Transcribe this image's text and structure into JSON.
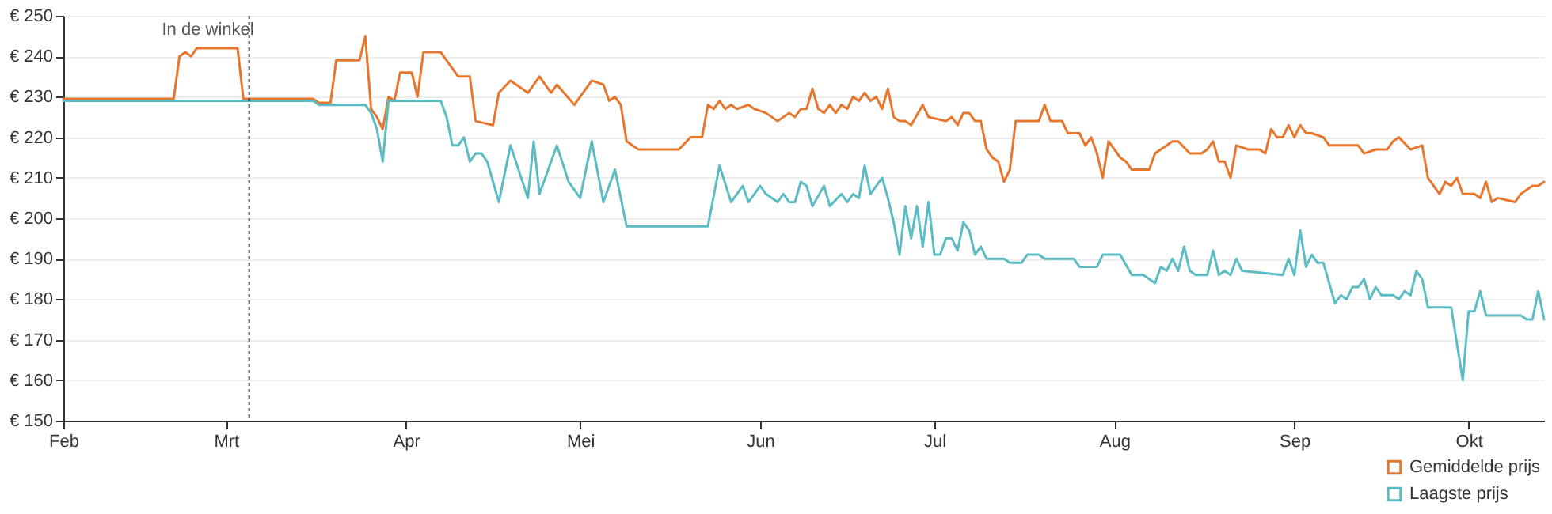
{
  "chart_data": {
    "type": "line",
    "xlim": [
      "--02-01",
      "--10-14"
    ],
    "xticks": [
      {
        "value": "--02-01",
        "label": "Feb"
      },
      {
        "value": "--03-01",
        "label": "Mrt"
      },
      {
        "value": "--04-01",
        "label": "Apr"
      },
      {
        "value": "--05-01",
        "label": "Mei"
      },
      {
        "value": "--06-01",
        "label": "Jun"
      },
      {
        "value": "--07-01",
        "label": "Jul"
      },
      {
        "value": "--08-01",
        "label": "Aug"
      },
      {
        "value": "--09-01",
        "label": "Sep"
      },
      {
        "value": "--10-01",
        "label": "Okt"
      }
    ],
    "ylim": [
      150,
      250
    ],
    "yticks": [
      {
        "value": 150,
        "label": "€ 150"
      },
      {
        "value": 160,
        "label": "€ 160"
      },
      {
        "value": 170,
        "label": "€ 170"
      },
      {
        "value": 180,
        "label": "€ 180"
      },
      {
        "value": 190,
        "label": "€ 190"
      },
      {
        "value": 200,
        "label": "€ 200"
      },
      {
        "value": 210,
        "label": "€ 210"
      },
      {
        "value": 220,
        "label": "€ 220"
      },
      {
        "value": 230,
        "label": "€ 230"
      },
      {
        "value": 240,
        "label": "€ 240"
      },
      {
        "value": 250,
        "label": "€ 250"
      }
    ],
    "grid": "y",
    "legend": "bottom right",
    "marker": "none",
    "line_style": "solid",
    "ref_lines": [
      {
        "axis": "x",
        "value": "--03-05",
        "label": "In de winkel",
        "line_style": "dotted",
        "color": "#333333"
      }
    ],
    "series": [
      {
        "name": "Gemiddelde prijs",
        "color": "#e8772e",
        "x": [
          "--02-01",
          "--02-20",
          "--02-21",
          "--02-22",
          "--02-23",
          "--02-24",
          "--02-27",
          "--02-28",
          "--03-03",
          "--03-04",
          "--03-09",
          "--03-16",
          "--03-17",
          "--03-19",
          "--03-20",
          "--03-24",
          "--03-25",
          "--03-26",
          "--03-27",
          "--03-28",
          "--03-29",
          "--03-30",
          "--03-31",
          "--04-02",
          "--04-03",
          "--04-04",
          "--04-07",
          "--04-09",
          "--04-10",
          "--04-12",
          "--04-13",
          "--04-16",
          "--04-17",
          "--04-19",
          "--04-22",
          "--04-24",
          "--04-26",
          "--04-27",
          "--04-30",
          "--05-03",
          "--05-05",
          "--05-06",
          "--05-07",
          "--05-08",
          "--05-09",
          "--05-10",
          "--05-11",
          "--05-18",
          "--05-20",
          "--05-22",
          "--05-23",
          "--05-24",
          "--05-25",
          "--05-26",
          "--05-27",
          "--05-28",
          "--05-30",
          "--05-31",
          "--06-02",
          "--06-04",
          "--06-06",
          "--06-07",
          "--06-08",
          "--06-09",
          "--06-10",
          "--06-11",
          "--06-12",
          "--06-13",
          "--06-14",
          "--06-15",
          "--06-16",
          "--06-17",
          "--06-18",
          "--06-19",
          "--06-20",
          "--06-21",
          "--06-22",
          "--06-23",
          "--06-24",
          "--06-25",
          "--06-26",
          "--06-27",
          "--06-29",
          "--06-30",
          "--07-03",
          "--07-04",
          "--07-05",
          "--07-06",
          "--07-07",
          "--07-08",
          "--07-09",
          "--07-10",
          "--07-11",
          "--07-12",
          "--07-13",
          "--07-14",
          "--07-15",
          "--07-17",
          "--07-19",
          "--07-20",
          "--07-21",
          "--07-23",
          "--07-24",
          "--07-26",
          "--07-27",
          "--07-28",
          "--07-29",
          "--07-30",
          "--07-31",
          "--08-02",
          "--08-03",
          "--08-04",
          "--08-07",
          "--08-08",
          "--08-09",
          "--08-11",
          "--08-12",
          "--08-14",
          "--08-16",
          "--08-17",
          "--08-18",
          "--08-19",
          "--08-20",
          "--08-21",
          "--08-22",
          "--08-24",
          "--08-26",
          "--08-27",
          "--08-28",
          "--08-29",
          "--08-30",
          "--08-31",
          "--09-01",
          "--09-02",
          "--09-03",
          "--09-04",
          "--09-06",
          "--09-07",
          "--09-09",
          "--09-12",
          "--09-13",
          "--09-15",
          "--09-17",
          "--09-18",
          "--09-19",
          "--09-21",
          "--09-23",
          "--09-24",
          "--09-25",
          "--09-26",
          "--09-27",
          "--09-28",
          "--09-29",
          "--09-30",
          "--10-02",
          "--10-03",
          "--10-04",
          "--10-05",
          "--10-06",
          "--10-09",
          "--10-10",
          "--10-12",
          "--10-13",
          "--10-14"
        ],
        "values": [
          229.5,
          229.5,
          240,
          241,
          240,
          242,
          242,
          242,
          242,
          229.5,
          229.5,
          229.5,
          228.5,
          228.5,
          239,
          239,
          245,
          227,
          225,
          222,
          230,
          229,
          236,
          236,
          230,
          241,
          241,
          237,
          235,
          235,
          224,
          223,
          231,
          234,
          231,
          235,
          231,
          233,
          228,
          234,
          233,
          229,
          230,
          228,
          219,
          218,
          217,
          217,
          220,
          220,
          228,
          227,
          229,
          227,
          228,
          227,
          228,
          227,
          226,
          224,
          226,
          225,
          227,
          227,
          232,
          227,
          226,
          228,
          226,
          228,
          227,
          230,
          229,
          231,
          229,
          230,
          227,
          232,
          225,
          224,
          224,
          223,
          228,
          225,
          224,
          225,
          223,
          226,
          226,
          224,
          224,
          217,
          215,
          214,
          209,
          212,
          224,
          224,
          224,
          228,
          224,
          224,
          221,
          221,
          218,
          220,
          216,
          210,
          219,
          215,
          214,
          212,
          212,
          216,
          217,
          219,
          219,
          216,
          216,
          217,
          219,
          214,
          214,
          210,
          218,
          217,
          217,
          216,
          222,
          220,
          220,
          223,
          220,
          223,
          221,
          221,
          220,
          218,
          218,
          218,
          216,
          217,
          217,
          219,
          220,
          217,
          218,
          210,
          208,
          206,
          209,
          208,
          210,
          206,
          206,
          205,
          209,
          204,
          205,
          204,
          206,
          208,
          208,
          209
        ]
      },
      {
        "name": "Laagste prijs",
        "color": "#5bbcc4",
        "x": [
          "--02-01",
          "--03-16",
          "--03-17",
          "--03-25",
          "--03-26",
          "--03-27",
          "--03-28",
          "--03-29",
          "--04-07",
          "--04-08",
          "--04-09",
          "--04-10",
          "--04-11",
          "--04-12",
          "--04-13",
          "--04-14",
          "--04-15",
          "--04-17",
          "--04-19",
          "--04-22",
          "--04-23",
          "--04-24",
          "--04-27",
          "--04-29",
          "--05-01",
          "--05-03",
          "--05-05",
          "--05-07",
          "--05-09",
          "--05-23",
          "--05-25",
          "--05-27",
          "--05-29",
          "--05-30",
          "--06-01",
          "--06-02",
          "--06-04",
          "--06-05",
          "--06-06",
          "--06-07",
          "--06-08",
          "--06-09",
          "--06-10",
          "--06-12",
          "--06-13",
          "--06-15",
          "--06-16",
          "--06-17",
          "--06-18",
          "--06-19",
          "--06-20",
          "--06-22",
          "--06-23",
          "--06-24",
          "--06-25",
          "--06-26",
          "--06-27",
          "--06-28",
          "--06-29",
          "--06-30",
          "--07-01",
          "--07-02",
          "--07-03",
          "--07-04",
          "--07-05",
          "--07-06",
          "--07-07",
          "--07-08",
          "--07-09",
          "--07-10",
          "--07-12",
          "--07-13",
          "--07-14",
          "--07-16",
          "--07-17",
          "--07-19",
          "--07-20",
          "--07-25",
          "--07-26",
          "--07-29",
          "--07-30",
          "--08-02",
          "--08-04",
          "--08-06",
          "--08-08",
          "--08-09",
          "--08-10",
          "--08-11",
          "--08-12",
          "--08-13",
          "--08-14",
          "--08-15",
          "--08-17",
          "--08-18",
          "--08-19",
          "--08-20",
          "--08-21",
          "--08-22",
          "--08-23",
          "--08-30",
          "--08-31",
          "--09-01",
          "--09-02",
          "--09-03",
          "--09-04",
          "--09-05",
          "--09-06",
          "--09-08",
          "--09-09",
          "--09-10",
          "--09-11",
          "--09-12",
          "--09-13",
          "--09-14",
          "--09-15",
          "--09-16",
          "--09-18",
          "--09-19",
          "--09-20",
          "--09-21",
          "--09-22",
          "--09-23",
          "--09-24",
          "--09-28",
          "--09-30",
          "--10-01",
          "--10-02",
          "--10-03",
          "--10-04",
          "--10-10",
          "--10-11",
          "--10-12",
          "--10-13",
          "--10-14"
        ],
        "values": [
          229,
          229,
          228,
          228,
          226,
          222,
          214,
          229,
          229,
          225,
          218,
          218,
          220,
          214,
          216,
          216,
          214,
          204,
          218,
          205,
          219,
          206,
          218,
          209,
          205,
          219,
          204,
          212,
          198,
          198,
          213,
          204,
          208,
          204,
          208,
          206,
          204,
          206,
          204,
          204,
          209,
          208,
          203,
          208,
          203,
          206,
          204,
          206,
          205,
          213,
          206,
          210,
          205,
          199,
          191,
          203,
          195,
          203,
          193,
          204,
          191,
          191,
          195,
          195,
          192,
          199,
          197,
          191,
          193,
          190,
          190,
          190,
          189,
          189,
          191,
          191,
          190,
          190,
          188,
          188,
          191,
          191,
          186,
          186,
          184,
          188,
          187,
          190,
          187,
          193,
          187,
          186,
          186,
          192,
          186,
          187,
          186,
          190,
          187,
          186,
          190,
          186,
          197,
          188,
          191,
          189,
          189,
          179,
          181,
          180,
          183,
          183,
          185,
          180,
          183,
          181,
          181,
          180,
          182,
          181,
          187,
          185,
          178,
          178,
          160,
          177,
          177,
          182,
          176,
          176,
          175,
          175,
          182,
          175
        ]
      }
    ]
  }
}
